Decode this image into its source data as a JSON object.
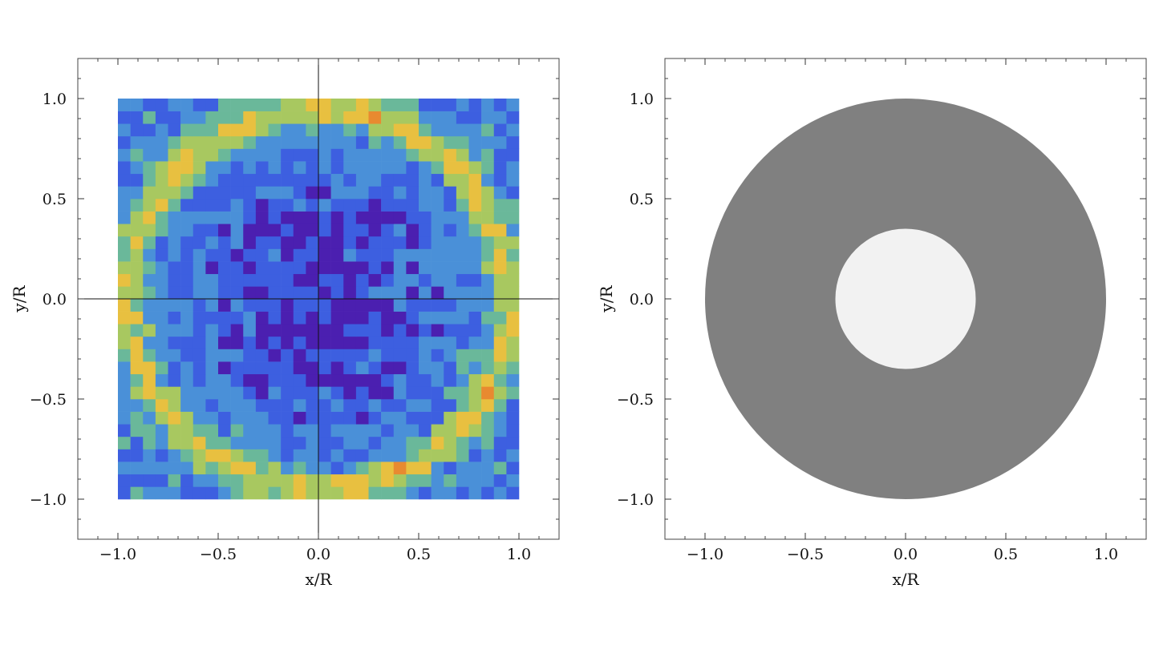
{
  "chart_data": [
    {
      "type": "heatmap",
      "title": "",
      "xlabel": "x/R",
      "ylabel": "y/R",
      "xlim": [
        -1.2,
        1.2
      ],
      "ylim": [
        -1.2,
        1.2
      ],
      "xticks": [
        "-1.0",
        "-0.5",
        "0.0",
        "0.5",
        "1.0"
      ],
      "yticks": [
        "-1.0",
        "-0.5",
        "0.0",
        "0.5",
        "1.0"
      ],
      "x_extent": [
        -1.0,
        1.0
      ],
      "y_extent": [
        -1.0,
        1.0
      ],
      "grid_size": [
        32,
        32
      ],
      "crosshair_at": [
        0.0,
        0.0
      ],
      "colormap": [
        "#4B1FB0",
        "#3D5FE0",
        "#4A90D8",
        "#6AB89A",
        "#A8C860",
        "#E8C040",
        "#E88A30",
        "#E03A20"
      ],
      "pattern": "random pixels; low (purple) near center, rising to a bright ring of high values (yellow/orange/red) near radius 1"
    },
    {
      "type": "annulus",
      "title": "",
      "xlabel": "x/R",
      "ylabel": "y/R",
      "xlim": [
        -1.2,
        1.2
      ],
      "ylim": [
        -1.2,
        1.2
      ],
      "xticks": [
        "-1.0",
        "-0.5",
        "0.0",
        "0.5",
        "1.0"
      ],
      "yticks": [
        "-1.0",
        "-0.5",
        "0.0",
        "0.5",
        "1.0"
      ],
      "outer_radius": 1.0,
      "inner_radius": 0.35,
      "ring_color": "#808080",
      "inner_color": "#F2F2F2"
    }
  ]
}
